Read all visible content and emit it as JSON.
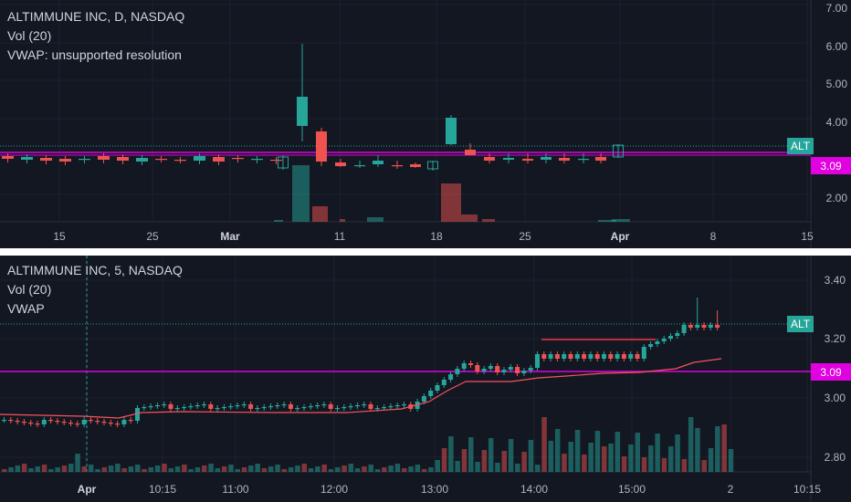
{
  "top": {
    "title": "ALTIMMUNE INC, D, NASDAQ",
    "vol": "Vol (20)",
    "vwap": "VWAP: unsupported resolution",
    "price_ticks": [
      "7.00",
      "6.00",
      "5.00",
      "4.00",
      "2.00"
    ],
    "time_ticks": [
      "15",
      "25",
      "Mar",
      "11",
      "18",
      "25",
      "Apr",
      "8",
      "15"
    ],
    "symbol_tag": "ALT",
    "line_tag": "3.09"
  },
  "bottom": {
    "title": "ALTIMMUNE INC, 5, NASDAQ",
    "vol": "Vol (20)",
    "vwap": "VWAP",
    "price_ticks": [
      "3.40",
      "3.20",
      "3.00",
      "2.80"
    ],
    "time_ticks": [
      "Apr",
      "10:15",
      "11:00",
      "12:00",
      "13:00",
      "14:00",
      "15:00",
      "2",
      "10:15"
    ],
    "symbol_tag": "ALT",
    "line_tag": "3.09"
  },
  "colors": {
    "bg": "#131722",
    "up": "#26a69a",
    "down": "#ef5350",
    "magenta": "#e000e0",
    "tag": "#26a69a",
    "vwap": "#f7525f"
  }
}
